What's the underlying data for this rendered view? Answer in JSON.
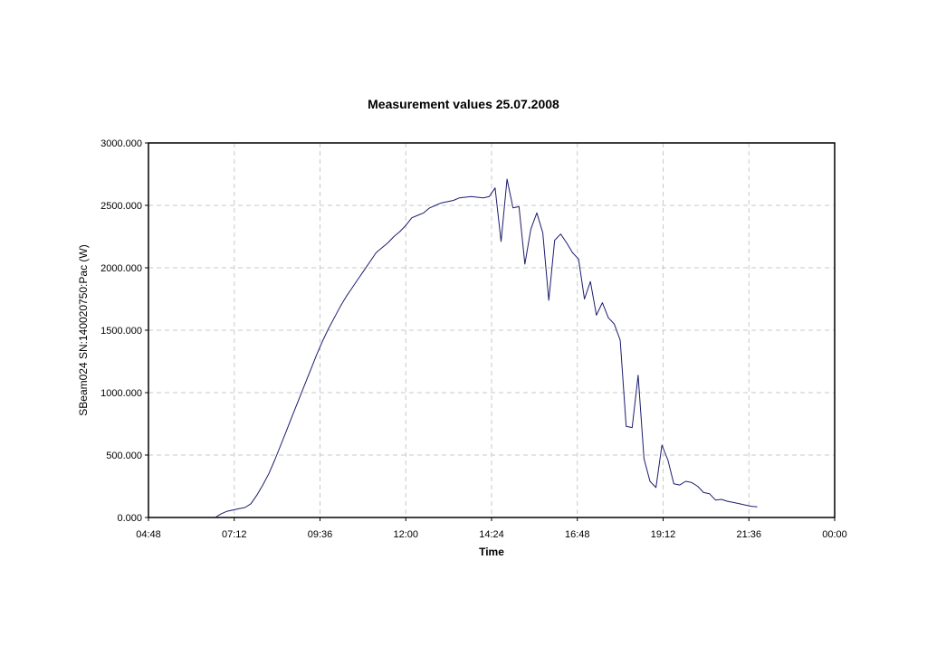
{
  "chart_data": {
    "type": "line",
    "title": "Measurement values 25.07.2008",
    "xlabel": "Time",
    "ylabel": "SBeam024 SN:140020750:Pac (W)",
    "x_ticks": [
      "04:48",
      "07:12",
      "09:36",
      "12:00",
      "14:24",
      "16:48",
      "19:12",
      "21:36",
      "00:00"
    ],
    "y_ticks": [
      "0.000",
      "500.000",
      "1000.000",
      "1500.000",
      "2000.000",
      "2500.000",
      "3000.000"
    ],
    "xlim": [
      "04:48",
      "00:00"
    ],
    "ylim": [
      0,
      3000
    ],
    "grid": true,
    "colors": {
      "series": "#1c1c6e",
      "grid": "#c8c8c8",
      "frame": "#000000"
    },
    "x": [
      "06:40",
      "06:50",
      "07:00",
      "07:10",
      "07:20",
      "07:30",
      "07:40",
      "07:50",
      "08:00",
      "08:10",
      "08:20",
      "08:30",
      "08:40",
      "08:50",
      "09:00",
      "09:10",
      "09:20",
      "09:30",
      "09:40",
      "09:50",
      "10:00",
      "10:10",
      "10:20",
      "10:30",
      "10:40",
      "10:50",
      "11:00",
      "11:10",
      "11:20",
      "11:30",
      "11:40",
      "11:50",
      "12:00",
      "12:10",
      "12:20",
      "12:30",
      "12:40",
      "12:50",
      "13:00",
      "13:10",
      "13:20",
      "13:30",
      "13:40",
      "13:50",
      "14:00",
      "14:10",
      "14:20",
      "14:30",
      "14:40",
      "14:50",
      "15:00",
      "15:10",
      "15:20",
      "15:30",
      "15:40",
      "15:50",
      "16:00",
      "16:10",
      "16:20",
      "16:30",
      "16:40",
      "16:50",
      "17:00",
      "17:10",
      "17:20",
      "17:30",
      "17:40",
      "17:50",
      "18:00",
      "18:10",
      "18:20",
      "18:30",
      "18:40",
      "18:50",
      "19:00",
      "19:10",
      "19:20",
      "19:30",
      "19:40",
      "19:50",
      "20:00",
      "20:10",
      "20:20",
      "20:30",
      "20:40",
      "20:50",
      "21:00",
      "21:10",
      "21:20",
      "21:30",
      "21:40",
      "21:50"
    ],
    "series": [
      {
        "values": [
          0,
          30,
          50,
          60,
          70,
          80,
          110,
          180,
          260,
          350,
          460,
          580,
          700,
          820,
          940,
          1060,
          1180,
          1300,
          1410,
          1510,
          1600,
          1690,
          1770,
          1840,
          1910,
          1980,
          2050,
          2120,
          2160,
          2200,
          2250,
          2290,
          2340,
          2400,
          2420,
          2440,
          2480,
          2500,
          2520,
          2530,
          2540,
          2560,
          2565,
          2570,
          2565,
          2560,
          2570,
          2640,
          2210,
          2710,
          2480,
          2490,
          2030,
          2310,
          2440,
          2280,
          1740,
          2220,
          2270,
          2200,
          2120,
          2070,
          1750,
          1890,
          1620,
          1720,
          1600,
          1550,
          1420,
          730,
          720,
          1140,
          470,
          290,
          240,
          580,
          460,
          270,
          260,
          290,
          280,
          250,
          200,
          190,
          140,
          145,
          130,
          120,
          110,
          100,
          90,
          85
        ],
        "x_values_for_series": null
      }
    ]
  }
}
